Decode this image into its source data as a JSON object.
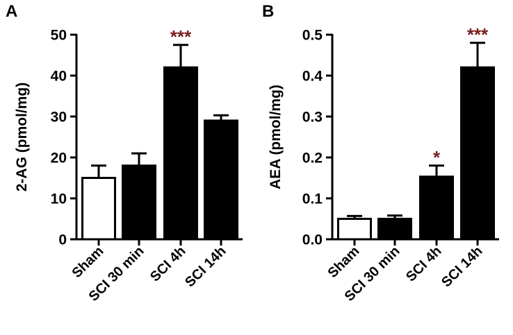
{
  "colors": {
    "sig": "#7a1f1f",
    "filled": "#000000",
    "open": "#ffffff"
  },
  "chart_data": [
    {
      "type": "bar",
      "panel": "A",
      "ylabel": "2-AG (pmol/mg)",
      "ylim": [
        0,
        50
      ],
      "yticks": [
        0,
        10,
        20,
        30,
        40,
        50
      ],
      "categories": [
        "Sham",
        "SCI 30 min",
        "SCI 4h",
        "SCI 14h"
      ],
      "values": [
        15,
        18,
        42,
        29
      ],
      "errors": [
        3,
        3,
        5.5,
        1.3
      ],
      "fills": [
        "open",
        "filled",
        "filled",
        "filled"
      ],
      "significance": [
        "",
        "",
        "***",
        ""
      ]
    },
    {
      "type": "bar",
      "panel": "B",
      "ylabel": "AEA (pmol/mg)",
      "ylim": [
        0,
        0.5
      ],
      "yticks": [
        0.0,
        0.1,
        0.2,
        0.3,
        0.4,
        0.5
      ],
      "categories": [
        "Sham",
        "SCI 30 min",
        "SCI 4h",
        "SCI 14h"
      ],
      "values": [
        0.05,
        0.05,
        0.153,
        0.42
      ],
      "errors": [
        0.007,
        0.008,
        0.027,
        0.06
      ],
      "fills": [
        "open",
        "filled",
        "filled",
        "filled"
      ],
      "significance": [
        "",
        "",
        "*",
        "***"
      ]
    }
  ]
}
